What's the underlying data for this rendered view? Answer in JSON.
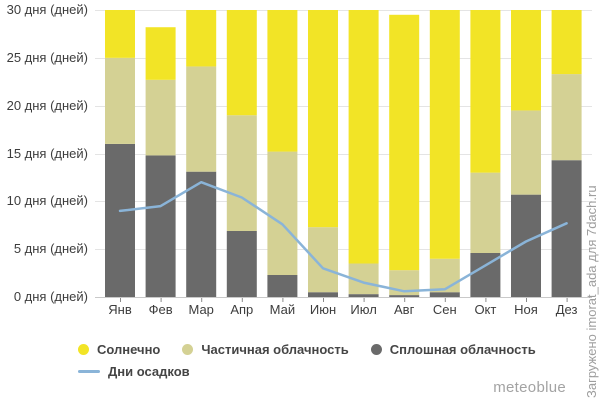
{
  "chart_data": {
    "type": "bar",
    "stacked": true,
    "title": "",
    "categories": [
      "Янв",
      "Фев",
      "Мар",
      "Апр",
      "Май",
      "Июн",
      "Июл",
      "Авг",
      "Сен",
      "Окт",
      "Ноя",
      "Дез"
    ],
    "series": [
      {
        "name": "Солнечно",
        "color": "#f2e426",
        "values": [
          5,
          5.5,
          5.9,
          11,
          14.8,
          22.7,
          26.5,
          26.7,
          26,
          17,
          10.5,
          6.7
        ]
      },
      {
        "name": "Частичная облачность",
        "color": "#d4d194",
        "values": [
          9,
          7.9,
          11,
          12.1,
          12.9,
          6.8,
          3.2,
          2.6,
          3.5,
          8.4,
          8.8,
          9
        ]
      },
      {
        "name": "Сплошная облачность",
        "color": "#6a6a6a",
        "values": [
          16,
          14.8,
          13.1,
          6.9,
          2.3,
          0.5,
          0.3,
          0.2,
          0.5,
          4.6,
          10.7,
          14.3
        ]
      }
    ],
    "line_series": {
      "name": "Дни осадков",
      "color": "#8ab4d8",
      "values": [
        9,
        9.5,
        12,
        10.4,
        7.6,
        3,
        1.5,
        0.6,
        0.8,
        3.3,
        5.8,
        7.7
      ]
    },
    "ylim": [
      0,
      30
    ],
    "grid": true,
    "legend_position": "bottom-left",
    "y_ticks": [
      {
        "value": 0,
        "label": "0 дня (дней)"
      },
      {
        "value": 5,
        "label": "5 дня (дней)"
      },
      {
        "value": 10,
        "label": "10 дня (дней)"
      },
      {
        "value": 15,
        "label": "15 дня (дней)"
      },
      {
        "value": 20,
        "label": "20 дня (дней)"
      },
      {
        "value": 25,
        "label": "25 дня (дней)"
      },
      {
        "value": 30,
        "label": "30 дня (дней)"
      }
    ]
  },
  "colors": {
    "grid": "#e4e4e4",
    "axis": "#c9c9c9",
    "tick": "#8a8a8a",
    "axis_text": "#3d3d3d",
    "legend_text": "#454545",
    "watermark_text": "#a3a3a3",
    "credit_text": "#9e9e9e"
  },
  "watermark": "meteoblue",
  "side_credit": "Загружено imorat_ada для 7dach.ru"
}
